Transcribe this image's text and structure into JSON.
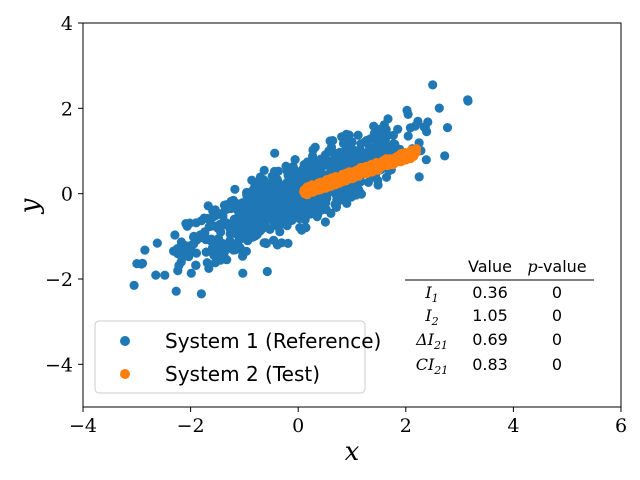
{
  "chart_data": {
    "type": "scatter",
    "title": "",
    "xlabel": "x",
    "ylabel": "y",
    "xlim": [
      -4,
      6
    ],
    "ylim": [
      -5,
      4
    ],
    "xticks": [
      -4,
      -2,
      0,
      2,
      4,
      6
    ],
    "yticks": [
      -4,
      -2,
      0,
      2,
      4
    ],
    "xtick_labels": [
      "−4",
      "−2",
      "0",
      "2",
      "4",
      "6"
    ],
    "ytick_labels": [
      "−4",
      "−2",
      "0",
      "2",
      "4"
    ],
    "grid": false,
    "legend_position": "lower-left",
    "series": [
      {
        "name": "System 1 (Reference)",
        "color": "#1f77b4",
        "distribution": "bivariate-normal",
        "n_points": 1000,
        "mean": [
          0,
          0
        ],
        "std": [
          1.0,
          0.7
        ],
        "correlation": 0.85,
        "highlighted_points": [
          [
            -3.05,
            -2.15
          ],
          [
            3.15,
            2.2
          ],
          [
            2.5,
            2.55
          ],
          [
            -1.8,
            -2.35
          ]
        ]
      },
      {
        "name": "System 2 (Test)",
        "color": "#ff7f0e",
        "distribution": "linear-band",
        "n_points": 300,
        "x_range": [
          0.1,
          2.2
        ],
        "line": {
          "slope": 0.44,
          "intercept": 0.0
        },
        "band_half_width": 0.1
      }
    ],
    "stats_table": {
      "columns": [
        "Value",
        "p-value"
      ],
      "rows": [
        {
          "label": "I",
          "sub": "1",
          "value": "0.36",
          "p": "0"
        },
        {
          "label": "I",
          "sub": "2",
          "value": "1.05",
          "p": "0"
        },
        {
          "label": "ΔI",
          "sub": "21",
          "value": "0.69",
          "p": "0"
        },
        {
          "label": "CI",
          "sub": "21",
          "value": "0.83",
          "p": "0"
        }
      ]
    }
  }
}
